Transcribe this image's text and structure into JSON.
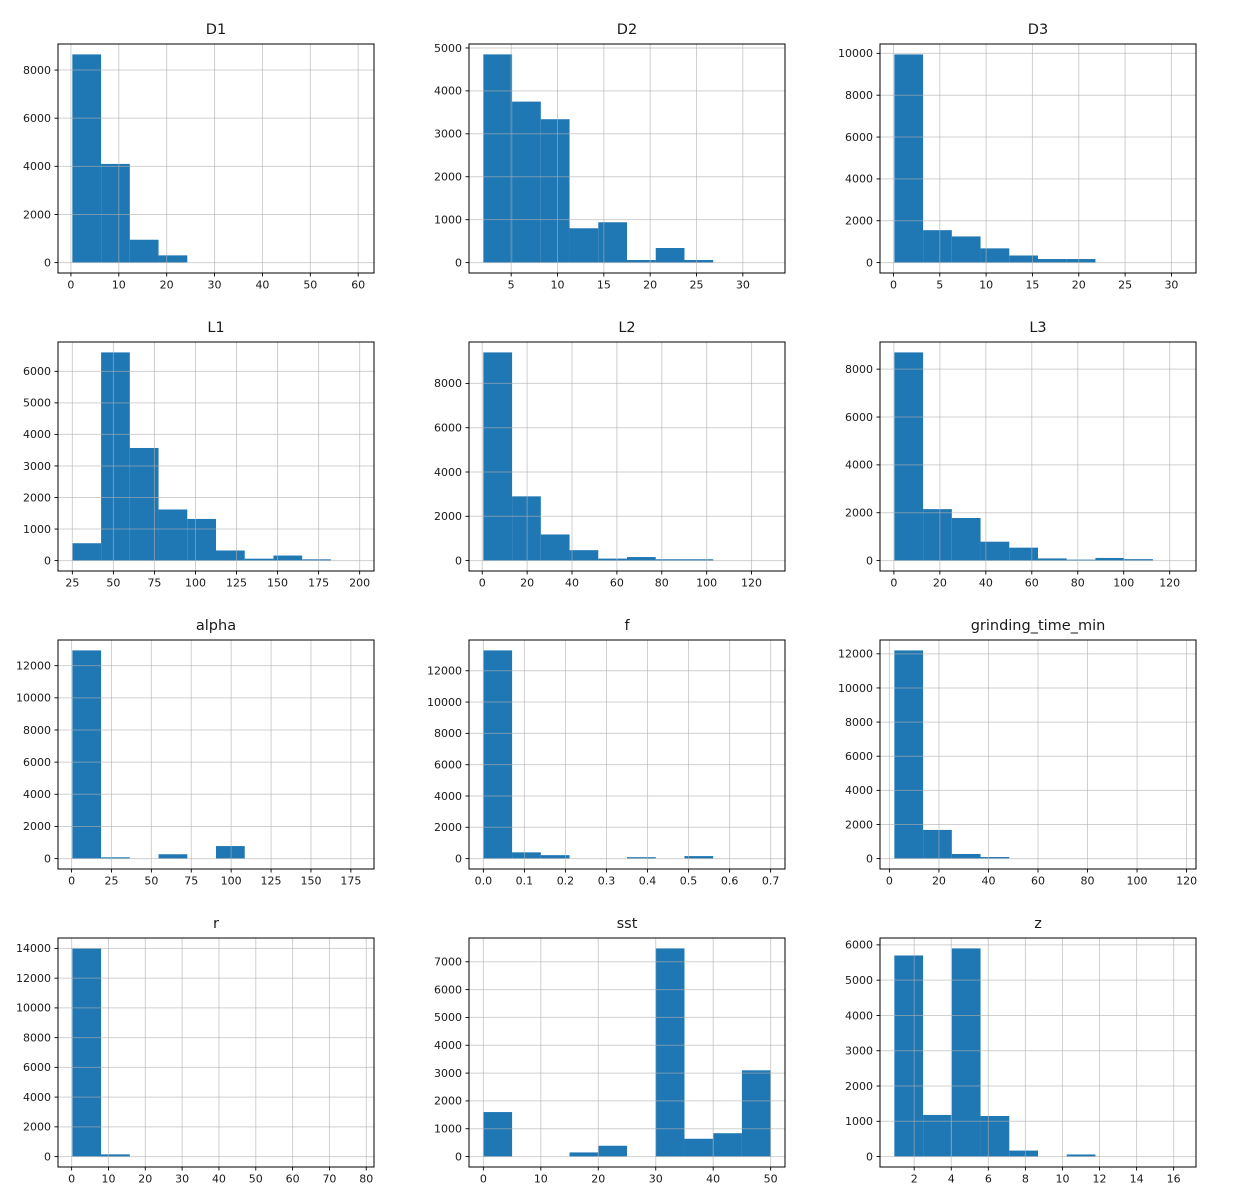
{
  "figure": {
    "bar_color": "#1f77b4",
    "grid_color": "#b0b0b0",
    "spine_color": "#000000",
    "text_color": "#1a1a1a",
    "background": "#ffffff",
    "grid": true,
    "layout": "4 rows x 3 columns of histograms"
  },
  "chart_data": [
    {
      "type": "bar",
      "title": "D1",
      "bin_start": 0.3,
      "bin_width": 6.0,
      "counts": [
        8650,
        4100,
        950,
        300,
        0,
        0,
        0,
        0,
        0,
        0
      ],
      "xlim": [
        -2.7,
        63.3
      ],
      "ylim": [
        -432,
        9082
      ],
      "xticks": [
        0,
        10,
        20,
        30,
        40,
        50,
        60
      ],
      "xtick_labels": [
        "0",
        "10",
        "20",
        "30",
        "40",
        "50",
        "60"
      ],
      "yticks": [
        0,
        2000,
        4000,
        6000,
        8000
      ],
      "ytick_labels": [
        "0",
        "2000",
        "4000",
        "6000",
        "8000"
      ]
    },
    {
      "type": "bar",
      "title": "D2",
      "bin_start": 2.0,
      "bin_width": 3.1,
      "counts": [
        4850,
        3750,
        3340,
        800,
        940,
        60,
        340,
        60,
        0,
        0
      ],
      "xlim": [
        0.45,
        34.55
      ],
      "ylim": [
        -242,
        5092
      ],
      "xticks": [
        5,
        10,
        15,
        20,
        25,
        30
      ],
      "xtick_labels": [
        "5",
        "10",
        "15",
        "20",
        "25",
        "30"
      ],
      "yticks": [
        0,
        1000,
        2000,
        3000,
        4000,
        5000
      ],
      "ytick_labels": [
        "0",
        "1000",
        "2000",
        "3000",
        "4000",
        "5000"
      ]
    },
    {
      "type": "bar",
      "title": "D3",
      "bin_start": 0.1,
      "bin_width": 3.1,
      "counts": [
        9950,
        1550,
        1250,
        680,
        340,
        170,
        170,
        0,
        0,
        0
      ],
      "xlim": [
        -1.45,
        32.65
      ],
      "ylim": [
        -497,
        10447
      ],
      "xticks": [
        0,
        5,
        10,
        15,
        20,
        25,
        30
      ],
      "xtick_labels": [
        "0",
        "5",
        "10",
        "15",
        "20",
        "25",
        "30"
      ],
      "yticks": [
        0,
        2000,
        4000,
        6000,
        8000,
        10000
      ],
      "ytick_labels": [
        "0",
        "2000",
        "4000",
        "6000",
        "8000",
        "10000"
      ]
    },
    {
      "type": "bar",
      "title": "L1",
      "bin_start": 25.0,
      "bin_width": 17.5,
      "counts": [
        550,
        6600,
        3570,
        1620,
        1320,
        320,
        60,
        160,
        40,
        0
      ],
      "xlim": [
        16.25,
        208.75
      ],
      "ylim": [
        -330,
        6930
      ],
      "xticks": [
        25,
        50,
        75,
        100,
        125,
        150,
        175,
        200
      ],
      "xtick_labels": [
        "25",
        "50",
        "75",
        "100",
        "125",
        "150",
        "175",
        "200"
      ],
      "yticks": [
        0,
        1000,
        2000,
        3000,
        4000,
        5000,
        6000
      ],
      "ytick_labels": [
        "0",
        "1000",
        "2000",
        "3000",
        "4000",
        "5000",
        "6000"
      ]
    },
    {
      "type": "bar",
      "title": "L2",
      "bin_start": 0.5,
      "bin_width": 12.8,
      "counts": [
        9400,
        2900,
        1180,
        470,
        90,
        160,
        60,
        60,
        0,
        0
      ],
      "xlim": [
        -5.9,
        134.9
      ],
      "ylim": [
        -470,
        9870
      ],
      "xticks": [
        0,
        20,
        40,
        60,
        80,
        100,
        120
      ],
      "xtick_labels": [
        "0",
        "20",
        "40",
        "60",
        "80",
        "100",
        "120"
      ],
      "yticks": [
        0,
        2000,
        4000,
        6000,
        8000
      ],
      "ytick_labels": [
        "0",
        "2000",
        "4000",
        "6000",
        "8000"
      ]
    },
    {
      "type": "bar",
      "title": "L3",
      "bin_start": 0.2,
      "bin_width": 12.5,
      "counts": [
        8700,
        2150,
        1780,
        790,
        540,
        90,
        40,
        110,
        60,
        0
      ],
      "xlim": [
        -6.05,
        131.45
      ],
      "ylim": [
        -435,
        9135
      ],
      "xticks": [
        0,
        20,
        40,
        60,
        80,
        100,
        120
      ],
      "xtick_labels": [
        "0",
        "20",
        "40",
        "60",
        "80",
        "100",
        "120"
      ],
      "yticks": [
        0,
        2000,
        4000,
        6000,
        8000
      ],
      "ytick_labels": [
        "0",
        "2000",
        "4000",
        "6000",
        "8000"
      ]
    },
    {
      "type": "bar",
      "title": "alpha",
      "bin_start": 0.5,
      "bin_width": 18.0,
      "counts": [
        12950,
        80,
        0,
        270,
        0,
        780,
        0,
        0,
        0,
        0
      ],
      "xlim": [
        -8.5,
        189.5
      ],
      "ylim": [
        -647,
        13597
      ],
      "xticks": [
        0,
        25,
        50,
        75,
        100,
        125,
        150,
        175
      ],
      "xtick_labels": [
        "0",
        "25",
        "50",
        "75",
        "100",
        "125",
        "150",
        "175"
      ],
      "yticks": [
        0,
        2000,
        4000,
        6000,
        8000,
        10000,
        12000
      ],
      "ytick_labels": [
        "0",
        "2000",
        "4000",
        "6000",
        "8000",
        "10000",
        "12000"
      ]
    },
    {
      "type": "bar",
      "title": "f",
      "bin_start": 0.0,
      "bin_width": 0.07,
      "counts": [
        13300,
        400,
        220,
        0,
        0,
        90,
        0,
        160,
        0,
        0
      ],
      "xlim": [
        -0.035,
        0.735
      ],
      "ylim": [
        -665,
        13965
      ],
      "xticks": [
        0.0,
        0.1,
        0.2,
        0.3,
        0.4,
        0.5,
        0.6,
        0.7
      ],
      "xtick_labels": [
        "0.0",
        "0.1",
        "0.2",
        "0.3",
        "0.4",
        "0.5",
        "0.6",
        "0.7"
      ],
      "yticks": [
        0,
        2000,
        4000,
        6000,
        8000,
        10000,
        12000
      ],
      "ytick_labels": [
        "0",
        "2000",
        "4000",
        "6000",
        "8000",
        "10000",
        "12000"
      ]
    },
    {
      "type": "bar",
      "title": "grinding_time_min",
      "bin_start": 2.0,
      "bin_width": 11.6,
      "counts": [
        12200,
        1680,
        270,
        90,
        0,
        0,
        0,
        0,
        0,
        0
      ],
      "xlim": [
        -3.8,
        123.8
      ],
      "ylim": [
        -610,
        12810
      ],
      "xticks": [
        0,
        20,
        40,
        60,
        80,
        100,
        120
      ],
      "xtick_labels": [
        "0",
        "20",
        "40",
        "60",
        "80",
        "100",
        "120"
      ],
      "yticks": [
        0,
        2000,
        4000,
        6000,
        8000,
        10000,
        12000
      ],
      "ytick_labels": [
        "0",
        "2000",
        "4000",
        "6000",
        "8000",
        "10000",
        "12000"
      ]
    },
    {
      "type": "bar",
      "title": "r",
      "bin_start": 0.2,
      "bin_width": 7.8,
      "counts": [
        14000,
        150,
        0,
        0,
        0,
        0,
        0,
        0,
        0,
        0
      ],
      "xlim": [
        -3.7,
        82.1
      ],
      "ylim": [
        -700,
        14700
      ],
      "xticks": [
        0,
        10,
        20,
        30,
        40,
        50,
        60,
        70,
        80
      ],
      "xtick_labels": [
        "0",
        "10",
        "20",
        "30",
        "40",
        "50",
        "60",
        "70",
        "80"
      ],
      "yticks": [
        0,
        2000,
        4000,
        6000,
        8000,
        10000,
        12000,
        14000
      ],
      "ytick_labels": [
        "0",
        "2000",
        "4000",
        "6000",
        "8000",
        "10000",
        "12000",
        "14000"
      ]
    },
    {
      "type": "bar",
      "title": "sst",
      "bin_start": 0.0,
      "bin_width": 5.0,
      "counts": [
        1600,
        0,
        0,
        150,
        390,
        0,
        7480,
        640,
        840,
        3100
      ],
      "xlim": [
        -2.5,
        52.5
      ],
      "ylim": [
        -374,
        7854
      ],
      "xticks": [
        0,
        10,
        20,
        30,
        40,
        50
      ],
      "xtick_labels": [
        "0",
        "10",
        "20",
        "30",
        "40",
        "50"
      ],
      "yticks": [
        0,
        1000,
        2000,
        3000,
        4000,
        5000,
        6000,
        7000
      ],
      "ytick_labels": [
        "0",
        "1000",
        "2000",
        "3000",
        "4000",
        "5000",
        "6000",
        "7000"
      ]
    },
    {
      "type": "bar",
      "title": "z",
      "bin_start": 0.93,
      "bin_width": 1.55,
      "counts": [
        5700,
        1180,
        5900,
        1150,
        170,
        0,
        60,
        0,
        0,
        0
      ],
      "xlim": [
        0.155,
        17.205
      ],
      "ylim": [
        -295,
        6195
      ],
      "xticks": [
        2,
        4,
        6,
        8,
        10,
        12,
        14,
        16
      ],
      "xtick_labels": [
        "2",
        "4",
        "6",
        "8",
        "10",
        "12",
        "14",
        "16"
      ],
      "yticks": [
        0,
        1000,
        2000,
        3000,
        4000,
        5000,
        6000
      ],
      "ytick_labels": [
        "0",
        "1000",
        "2000",
        "3000",
        "4000",
        "5000",
        "6000"
      ]
    }
  ]
}
